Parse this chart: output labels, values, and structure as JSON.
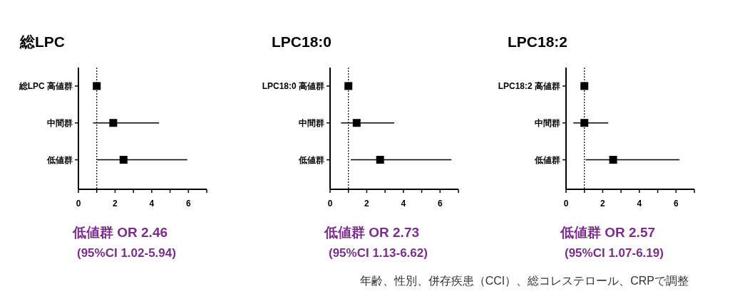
{
  "chart_data": [
    {
      "type": "scatter",
      "orientation": "horizontal",
      "title": "総LPC",
      "categories": [
        "総LPC 高値群",
        "中間群",
        "低値群"
      ],
      "values": [
        1,
        1.9,
        2.46
      ],
      "errors": [
        null,
        [
          0.8,
          4.4
        ],
        [
          1.02,
          5.94
        ]
      ],
      "color": "#000000",
      "marker": "square",
      "xlim": [
        0,
        7
      ],
      "xticks": [
        0,
        {
          "value": 1,
          "label": null
        },
        2,
        {
          "value": 3,
          "label": null
        },
        4,
        {
          "value": 5,
          "label": null
        },
        6,
        {
          "value": 7,
          "label": null
        }
      ],
      "ref_lines": [
        {
          "axis": "x",
          "value": 1,
          "line_style": "dotted",
          "color": "#000000"
        }
      ],
      "annotations": [
        "低値群 OR 2.46",
        "(95%CI 1.02-5.94)"
      ]
    },
    {
      "type": "scatter",
      "orientation": "horizontal",
      "title": "LPC18:0",
      "categories": [
        "LPC18:0 高値群",
        "中間群",
        "低値群"
      ],
      "values": [
        1,
        1.45,
        2.73
      ],
      "errors": [
        null,
        [
          0.6,
          3.5
        ],
        [
          1.13,
          6.62
        ]
      ],
      "color": "#000000",
      "marker": "square",
      "xlim": [
        0,
        7
      ],
      "xticks": [
        0,
        {
          "value": 1,
          "label": null
        },
        2,
        {
          "value": 3,
          "label": null
        },
        4,
        {
          "value": 5,
          "label": null
        },
        6,
        {
          "value": 7,
          "label": null
        }
      ],
      "ref_lines": [
        {
          "axis": "x",
          "value": 1,
          "line_style": "dotted",
          "color": "#000000"
        }
      ],
      "annotations": [
        "低値群 OR 2.73",
        "(95%CI 1.13-6.62)"
      ]
    },
    {
      "type": "scatter",
      "orientation": "horizontal",
      "title": "LPC18:2",
      "categories": [
        "LPC18:2 高値群",
        "中間群",
        "低値群"
      ],
      "values": [
        1,
        1.0,
        2.57
      ],
      "errors": [
        null,
        [
          0.4,
          2.3
        ],
        [
          1.07,
          6.19
        ]
      ],
      "color": "#000000",
      "marker": "square",
      "xlim": [
        0,
        7
      ],
      "xticks": [
        0,
        {
          "value": 1,
          "label": null
        },
        2,
        {
          "value": 3,
          "label": null
        },
        4,
        {
          "value": 5,
          "label": null
        },
        6,
        {
          "value": 7,
          "label": null
        }
      ],
      "ref_lines": [
        {
          "axis": "x",
          "value": 1,
          "line_style": "dotted",
          "color": "#000000"
        }
      ],
      "annotations": [
        "低値群 OR 2.57",
        "(95%CI 1.07-6.19)",
        "年齢、性別、併存疾患（CCI）、総コレステロール、CRPで調整"
      ]
    }
  ]
}
